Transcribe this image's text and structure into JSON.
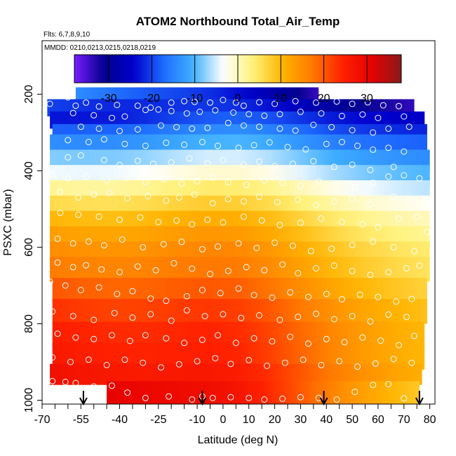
{
  "chart_data": {
    "type": "heatmap",
    "title": "ATOM2 Northbound Total_Air_Temp",
    "flights_note": "Flts: 6,7,8,9,10",
    "dates_note": "MMDD: 0210,0213,0215,0218,0219",
    "xlabel": "Latitude (deg N)",
    "ylabel": "PSXC (mbar)",
    "xlim": [
      -70,
      82
    ],
    "ylim": [
      1010,
      60
    ],
    "y_reversed": true,
    "x_ticks": [
      -70,
      -55,
      -40,
      -25,
      -10,
      0,
      10,
      20,
      30,
      40,
      50,
      60,
      70,
      80
    ],
    "x_ticks_extra_marks": [
      -65,
      -60,
      -50,
      -45,
      -35,
      -30,
      -20,
      -15,
      -5,
      5,
      15,
      25,
      35,
      45,
      55,
      65,
      75
    ],
    "y_ticks": [
      200,
      400,
      600,
      800,
      1000
    ],
    "colorbar": {
      "vmin": -38,
      "vmax": 38,
      "ticks": [
        -30,
        -20,
        -10,
        0,
        10,
        20,
        30
      ],
      "colors": [
        "#7a1bff",
        "#00008b",
        "#0000cd",
        "#1e6bff",
        "#3fb0ff",
        "#ffffff",
        "#fff27a",
        "#ffb400",
        "#ff7a00",
        "#ff2200",
        "#e60000",
        "#8b1a1a"
      ]
    },
    "profile_layers": [
      {
        "p_top": 182,
        "p_bot": 238,
        "lat_start": -57,
        "lat_end": 37,
        "t_south": -14,
        "t_north": -37
      },
      {
        "p_top": 213,
        "p_bot": 258,
        "lat_start": -68,
        "lat_end": 74,
        "t_south": -20,
        "t_north": -34
      },
      {
        "p_top": 245,
        "p_bot": 290,
        "lat_start": -67,
        "lat_end": 78,
        "t_south": -23,
        "t_north": -25
      },
      {
        "p_top": 278,
        "p_bot": 320,
        "lat_start": -66,
        "lat_end": 79,
        "t_south": -18,
        "t_north": -22
      },
      {
        "p_top": 305,
        "p_bot": 360,
        "lat_start": -67,
        "lat_end": 79,
        "t_south": -14,
        "t_north": -18
      },
      {
        "p_top": 345,
        "p_bot": 400,
        "lat_start": -67,
        "lat_end": 80,
        "t_south": -8,
        "t_north": -14
      },
      {
        "p_top": 385,
        "p_bot": 440,
        "lat_start": -67,
        "lat_end": 80,
        "t_south": -4,
        "t_north": -10
      },
      {
        "p_top": 425,
        "p_bot": 480,
        "lat_start": -67,
        "lat_end": 80,
        "t_south": 2,
        "t_north": -6
      },
      {
        "p_top": 465,
        "p_bot": 520,
        "lat_start": -67,
        "lat_end": 80,
        "t_south": 6,
        "t_north": -3
      },
      {
        "p_top": 505,
        "p_bot": 560,
        "lat_start": -67,
        "lat_end": 80,
        "t_south": 10,
        "t_north": 0
      },
      {
        "p_top": 545,
        "p_bot": 600,
        "lat_start": -67,
        "lat_end": 80,
        "t_south": 13,
        "t_north": 2
      },
      {
        "p_top": 585,
        "p_bot": 640,
        "lat_start": -67,
        "lat_end": 80,
        "t_south": 15,
        "t_north": 4
      },
      {
        "p_top": 625,
        "p_bot": 690,
        "lat_start": -67,
        "lat_end": 80,
        "t_south": 17,
        "t_north": 5
      },
      {
        "p_top": 680,
        "p_bot": 740,
        "lat_start": -66,
        "lat_end": 79,
        "t_south": 20,
        "t_north": 7
      },
      {
        "p_top": 735,
        "p_bot": 800,
        "lat_start": -66,
        "lat_end": 79,
        "t_south": 23,
        "t_north": 9
      },
      {
        "p_top": 795,
        "p_bot": 860,
        "lat_start": -66,
        "lat_end": 78,
        "t_south": 25,
        "t_north": 10
      },
      {
        "p_top": 850,
        "p_bot": 920,
        "lat_start": -66,
        "lat_end": 78,
        "t_south": 26,
        "t_north": 10
      },
      {
        "p_top": 905,
        "p_bot": 960,
        "lat_start": -67,
        "lat_end": 77,
        "t_south": 28,
        "t_north": 11
      },
      {
        "p_top": 950,
        "p_bot": 1010,
        "lat_start": -45,
        "lat_end": 76,
        "t_south": 30,
        "t_north": 8
      }
    ],
    "observation_points": [
      [
        -64,
        195
      ],
      [
        -60,
        208
      ],
      [
        -67,
        225
      ],
      [
        -57,
        230
      ],
      [
        -53,
        222
      ],
      [
        -48,
        232
      ],
      [
        -41,
        228
      ],
      [
        -33,
        230
      ],
      [
        -28,
        235
      ],
      [
        -20,
        222
      ],
      [
        -15,
        218
      ],
      [
        -11,
        220
      ],
      [
        -5,
        222
      ],
      [
        0,
        215
      ],
      [
        5,
        222
      ],
      [
        8,
        230
      ],
      [
        14,
        221
      ],
      [
        20,
        225
      ],
      [
        28,
        218
      ],
      [
        36,
        222
      ],
      [
        44,
        219
      ],
      [
        50,
        225
      ],
      [
        56,
        221
      ],
      [
        62,
        229
      ],
      [
        68,
        231
      ],
      [
        -58,
        249
      ],
      [
        -50,
        255
      ],
      [
        -43,
        262
      ],
      [
        -38,
        258
      ],
      [
        -30,
        241
      ],
      [
        -25,
        240
      ],
      [
        -20,
        244
      ],
      [
        -14,
        250
      ],
      [
        -9,
        246
      ],
      [
        -3,
        242
      ],
      [
        4,
        248
      ],
      [
        10,
        252
      ],
      [
        16,
        256
      ],
      [
        22,
        252
      ],
      [
        30,
        246
      ],
      [
        38,
        250
      ],
      [
        46,
        257
      ],
      [
        54,
        253
      ],
      [
        60,
        262
      ],
      [
        70,
        258
      ],
      [
        -55,
        285
      ],
      [
        -48,
        290
      ],
      [
        -40,
        296
      ],
      [
        -33,
        292
      ],
      [
        -24,
        282
      ],
      [
        -18,
        286
      ],
      [
        -12,
        290
      ],
      [
        -6,
        288
      ],
      [
        2,
        275
      ],
      [
        8,
        282
      ],
      [
        14,
        285
      ],
      [
        22,
        290
      ],
      [
        28,
        295
      ],
      [
        35,
        280
      ],
      [
        42,
        286
      ],
      [
        50,
        294
      ],
      [
        58,
        300
      ],
      [
        64,
        290
      ],
      [
        72,
        285
      ],
      [
        -60,
        320
      ],
      [
        -52,
        325
      ],
      [
        -46,
        318
      ],
      [
        -38,
        330
      ],
      [
        -30,
        335
      ],
      [
        -22,
        327
      ],
      [
        -15,
        332
      ],
      [
        -8,
        325
      ],
      [
        -2,
        335
      ],
      [
        6,
        340
      ],
      [
        12,
        333
      ],
      [
        18,
        326
      ],
      [
        25,
        338
      ],
      [
        32,
        344
      ],
      [
        40,
        330
      ],
      [
        46,
        325
      ],
      [
        52,
        335
      ],
      [
        58,
        345
      ],
      [
        64,
        340
      ],
      [
        70,
        350
      ],
      [
        -60,
        365
      ],
      [
        -55,
        360
      ],
      [
        -46,
        372
      ],
      [
        -40,
        385
      ],
      [
        -33,
        374
      ],
      [
        -27,
        382
      ],
      [
        -20,
        378
      ],
      [
        -13,
        368
      ],
      [
        -6,
        380
      ],
      [
        0,
        372
      ],
      [
        8,
        384
      ],
      [
        14,
        376
      ],
      [
        20,
        388
      ],
      [
        27,
        382
      ],
      [
        35,
        375
      ],
      [
        43,
        390
      ],
      [
        50,
        384
      ],
      [
        57,
        398
      ],
      [
        66,
        390
      ],
      [
        -66,
        410
      ],
      [
        -60,
        420
      ],
      [
        -53,
        415
      ],
      [
        -45,
        425
      ],
      [
        -37,
        418
      ],
      [
        -30,
        430
      ],
      [
        -23,
        422
      ],
      [
        -16,
        434
      ],
      [
        -10,
        428
      ],
      [
        -4,
        418
      ],
      [
        2,
        430
      ],
      [
        9,
        437
      ],
      [
        16,
        425
      ],
      [
        23,
        432
      ],
      [
        30,
        440
      ],
      [
        37,
        428
      ],
      [
        44,
        435
      ],
      [
        51,
        442
      ],
      [
        58,
        432
      ],
      [
        64,
        415
      ],
      [
        70,
        412
      ],
      [
        76,
        420
      ],
      [
        -63,
        455
      ],
      [
        -56,
        470
      ],
      [
        -50,
        462
      ],
      [
        -44,
        458
      ],
      [
        -37,
        472
      ],
      [
        -29,
        466
      ],
      [
        -22,
        478
      ],
      [
        -17,
        470
      ],
      [
        -11,
        462
      ],
      [
        -4,
        485
      ],
      [
        2,
        474
      ],
      [
        8,
        480
      ],
      [
        14,
        468
      ],
      [
        21,
        482
      ],
      [
        29,
        476
      ],
      [
        36,
        490
      ],
      [
        43,
        480
      ],
      [
        50,
        472
      ],
      [
        57,
        488
      ],
      [
        66,
        468
      ],
      [
        72,
        475
      ],
      [
        77,
        488
      ],
      [
        -63,
        510
      ],
      [
        -56,
        515
      ],
      [
        -48,
        520
      ],
      [
        -40,
        528
      ],
      [
        -32,
        522
      ],
      [
        -25,
        534
      ],
      [
        -18,
        530
      ],
      [
        -12,
        540
      ],
      [
        -6,
        528
      ],
      [
        0,
        535
      ],
      [
        8,
        520
      ],
      [
        15,
        530
      ],
      [
        22,
        542
      ],
      [
        30,
        536
      ],
      [
        38,
        525
      ],
      [
        46,
        534
      ],
      [
        54,
        540
      ],
      [
        60,
        548
      ],
      [
        68,
        525
      ],
      [
        75,
        520
      ],
      [
        79,
        560
      ],
      [
        -64,
        578
      ],
      [
        -58,
        590
      ],
      [
        -52,
        585
      ],
      [
        -46,
        595
      ],
      [
        -39,
        580
      ],
      [
        -31,
        600
      ],
      [
        -23,
        592
      ],
      [
        -16,
        586
      ],
      [
        -8,
        605
      ],
      [
        -2,
        598
      ],
      [
        6,
        590
      ],
      [
        13,
        602
      ],
      [
        20,
        588
      ],
      [
        27,
        596
      ],
      [
        34,
        610
      ],
      [
        42,
        604
      ],
      [
        50,
        594
      ],
      [
        58,
        585
      ],
      [
        66,
        600
      ],
      [
        74,
        610
      ],
      [
        -64,
        640
      ],
      [
        -58,
        652
      ],
      [
        -53,
        647
      ],
      [
        -47,
        658
      ],
      [
        -40,
        665
      ],
      [
        -33,
        650
      ],
      [
        -26,
        660
      ],
      [
        -19,
        642
      ],
      [
        -12,
        656
      ],
      [
        -5,
        670
      ],
      [
        2,
        662
      ],
      [
        9,
        652
      ],
      [
        16,
        660
      ],
      [
        23,
        645
      ],
      [
        29,
        668
      ],
      [
        36,
        655
      ],
      [
        43,
        648
      ],
      [
        50,
        662
      ],
      [
        57,
        672
      ],
      [
        64,
        665
      ],
      [
        71,
        655
      ],
      [
        76,
        648
      ],
      [
        -67,
        690
      ],
      [
        -61,
        700
      ],
      [
        -55,
        712
      ],
      [
        -48,
        705
      ],
      [
        -41,
        722
      ],
      [
        -35,
        715
      ],
      [
        -28,
        734
      ],
      [
        -22,
        740
      ],
      [
        -14,
        728
      ],
      [
        -8,
        712
      ],
      [
        -1,
        720
      ],
      [
        6,
        708
      ],
      [
        12,
        725
      ],
      [
        19,
        732
      ],
      [
        26,
        718
      ],
      [
        33,
        730
      ],
      [
        40,
        722
      ],
      [
        46,
        736
      ],
      [
        53,
        724
      ],
      [
        60,
        730
      ],
      [
        67,
        742
      ],
      [
        73,
        735
      ],
      [
        -66,
        768
      ],
      [
        -58,
        780
      ],
      [
        -50,
        790
      ],
      [
        -42,
        772
      ],
      [
        -35,
        784
      ],
      [
        -28,
        775
      ],
      [
        -20,
        792
      ],
      [
        -14,
        765
      ],
      [
        -7,
        780
      ],
      [
        0,
        775
      ],
      [
        7,
        785
      ],
      [
        14,
        778
      ],
      [
        22,
        790
      ],
      [
        29,
        782
      ],
      [
        36,
        774
      ],
      [
        43,
        788
      ],
      [
        50,
        780
      ],
      [
        57,
        794
      ],
      [
        64,
        776
      ],
      [
        71,
        782
      ],
      [
        -64,
        826
      ],
      [
        -57,
        836
      ],
      [
        -50,
        840
      ],
      [
        -43,
        830
      ],
      [
        -36,
        845
      ],
      [
        -30,
        830
      ],
      [
        -22,
        838
      ],
      [
        -15,
        850
      ],
      [
        -8,
        842
      ],
      [
        -2,
        830
      ],
      [
        5,
        850
      ],
      [
        12,
        838
      ],
      [
        19,
        846
      ],
      [
        26,
        834
      ],
      [
        33,
        852
      ],
      [
        40,
        840
      ],
      [
        47,
        848
      ],
      [
        54,
        836
      ],
      [
        61,
        844
      ],
      [
        68,
        856
      ],
      [
        74,
        832
      ],
      [
        -66,
        888
      ],
      [
        -59,
        900
      ],
      [
        -52,
        894
      ],
      [
        -45,
        908
      ],
      [
        -38,
        894
      ],
      [
        -31,
        902
      ],
      [
        -24,
        914
      ],
      [
        -17,
        906
      ],
      [
        -10,
        898
      ],
      [
        -3,
        890
      ],
      [
        3,
        905
      ],
      [
        10,
        895
      ],
      [
        17,
        910
      ],
      [
        24,
        902
      ],
      [
        31,
        894
      ],
      [
        38,
        908
      ],
      [
        45,
        898
      ],
      [
        52,
        912
      ],
      [
        59,
        904
      ],
      [
        66,
        892
      ],
      [
        73,
        902
      ],
      [
        -66,
        950
      ],
      [
        -61,
        952
      ],
      [
        -57,
        955
      ],
      [
        -50,
        964
      ],
      [
        -43,
        962
      ],
      [
        -37,
        980
      ],
      [
        -30,
        994
      ],
      [
        -21,
        990
      ],
      [
        -12,
        998
      ],
      [
        -8,
        990
      ],
      [
        -4,
        994
      ],
      [
        3,
        992
      ],
      [
        10,
        994
      ],
      [
        16,
        998
      ],
      [
        23,
        996
      ],
      [
        30,
        992
      ],
      [
        37,
        994
      ],
      [
        44,
        998
      ],
      [
        51,
        978
      ],
      [
        58,
        960
      ],
      [
        64,
        958
      ],
      [
        70,
        995
      ]
    ],
    "flight_markers_lat": [
      -54,
      -8,
      39,
      76
    ]
  }
}
